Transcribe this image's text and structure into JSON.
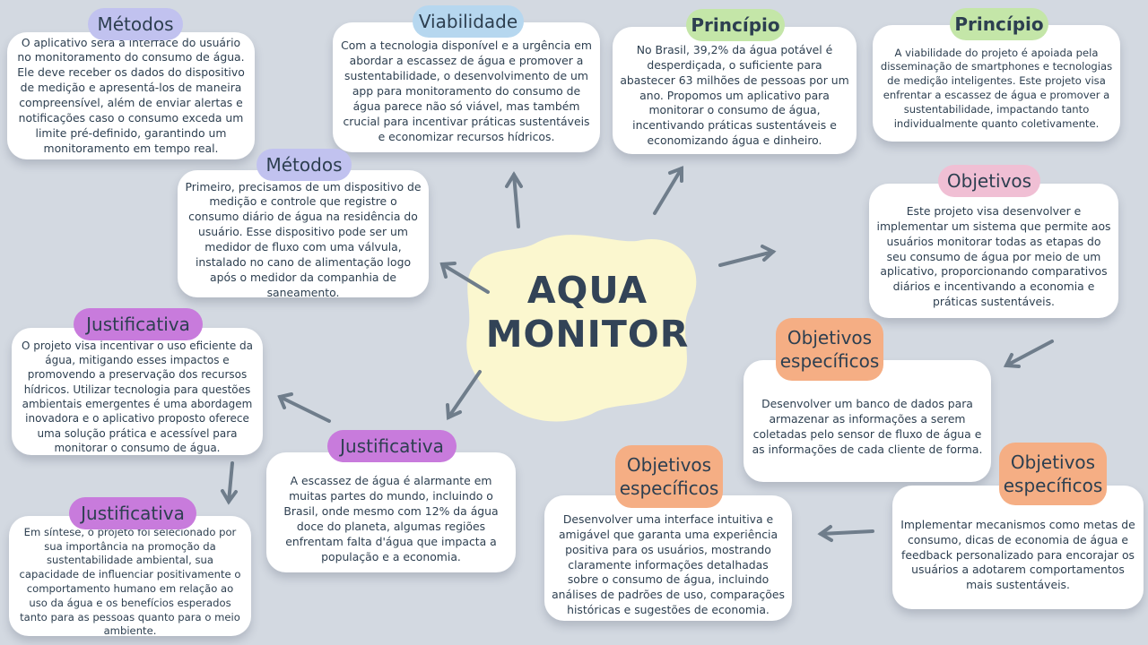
{
  "center": {
    "line1": "AQUA",
    "line2": "MONITOR"
  },
  "nodes": {
    "metodos_1": {
      "tag": "Métodos",
      "text": "O aplicativo será a interface do usuário no monitoramento do consumo de água. Ele deve receber os dados do dispositivo de medição e apresentá-los de maneira compreensível, além de enviar alertas e notificações caso o consumo exceda um limite pré-definido, garantindo um monitoramento em tempo real."
    },
    "viabilidade": {
      "tag": "Viabilidade",
      "text": "Com a tecnologia disponível e a urgência em abordar a escassez de água e promover a sustentabilidade, o desenvolvimento de um app para monitoramento do consumo de água parece não só viável, mas também crucial para incentivar práticas sustentáveis e economizar recursos hídricos."
    },
    "principio_1": {
      "tag": "Princípio",
      "text": "No Brasil, 39,2% da água potável é desperdiçada, o suficiente para abastecer 63 milhões de pessoas por um ano. Propomos um aplicativo para monitorar o consumo de água, incentivando práticas sustentáveis e economizando água e dinheiro."
    },
    "principio_2": {
      "tag": "Princípio",
      "text": "A viabilidade do projeto é apoiada pela disseminação de smartphones e tecnologias de medição inteligentes. Este projeto visa enfrentar a escassez de água e promover a sustentabilidade, impactando tanto individualmente quanto coletivamente."
    },
    "metodos_2": {
      "tag": "Métodos",
      "text": "Primeiro, precisamos de um dispositivo de medição e controle que registre o consumo diário de água na residência do usuário. Esse dispositivo pode ser um medidor de fluxo com uma válvula, instalado no cano de alimentação logo após o medidor da companhia de saneamento."
    },
    "objetivos": {
      "tag": "Objetivos",
      "text": "Este projeto visa desenvolver e implementar um sistema que permite aos usuários monitorar todas as etapas do seu consumo de água por meio de um aplicativo, proporcionando comparativos diários e incentivando a economia e práticas sustentáveis."
    },
    "justificativa_1": {
      "tag": "Justificativa",
      "text": "O projeto visa incentivar o uso eficiente da água, mitigando esses impactos e promovendo a preservação dos recursos hídricos. Utilizar tecnologia para questões ambientais emergentes é uma abordagem inovadora e o aplicativo proposto oferece uma solução prática e acessível para monitorar o consumo de água."
    },
    "objetivos_esp_1": {
      "tag": "Objetivos específicos",
      "text": "Desenvolver um banco de dados para armazenar as informações a serem coletadas pelo sensor de fluxo de água e as informações de cada cliente de forma."
    },
    "justificativa_2": {
      "tag": "Justificativa",
      "text": "A escassez de água é alarmante em muitas partes do mundo, incluindo o Brasil, onde mesmo com 12% da água doce do planeta, algumas regiões enfrentam falta d'água que impacta a população e a economia."
    },
    "justificativa_3": {
      "tag": "Justificativa",
      "text": "Em síntese, o projeto foi selecionado por sua importância na promoção da sustentabilidade ambiental, sua capacidade de influenciar positivamente o comportamento humano em relação ao uso da água e os benefícios esperados tanto para as pessoas quanto para o meio ambiente."
    },
    "objetivos_esp_2": {
      "tag": "Objetivos específicos",
      "text": "Desenvolver uma interface intuitiva e amigável que garanta uma experiência positiva para os usuários, mostrando claramente informações detalhadas sobre o consumo de água, incluindo análises de padrões de uso, comparações históricas e sugestões de economia."
    },
    "objetivos_esp_3": {
      "tag": "Objetivos específicos",
      "text": "Implementar mecanismos como metas de consumo, dicas de economia de água e feedback personalizado para encorajar os usuários a adotarem comportamentos mais sustentáveis."
    }
  },
  "colors": {
    "background": "#d3d9e1",
    "center_blob": "#fbf7cf",
    "arrow": "#6f7d8b",
    "text": "#2d3f50"
  }
}
